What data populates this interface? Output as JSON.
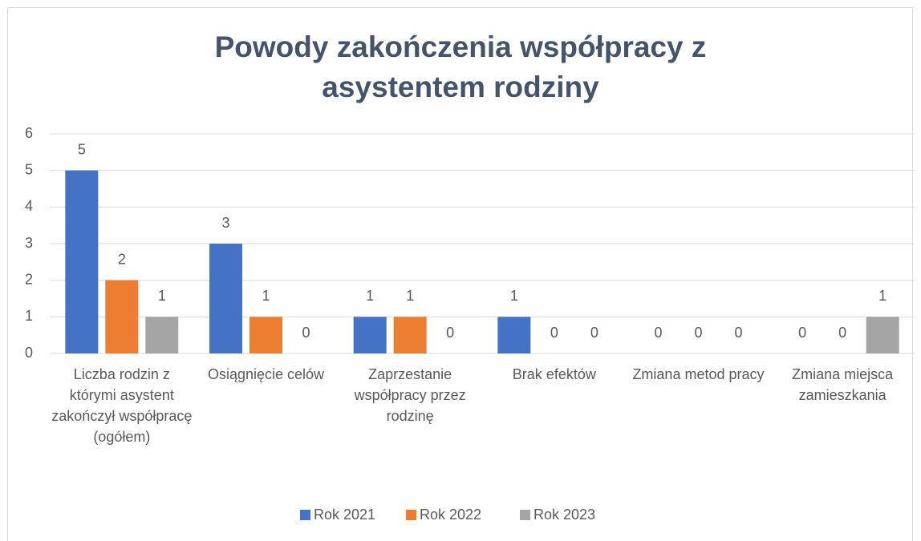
{
  "chart_data": {
    "type": "bar",
    "title": "Powody zakończenia współpracy z asystentem rodziny",
    "categories": [
      "Liczba rodzin z którymi asystent zakończył współpracę (ogółem)",
      "Osiągnięcie celów",
      "Zaprzestanie współpracy przez rodzinę",
      "Brak efektów",
      "Zmiana metod pracy",
      "Zmiana miejsca zamieszkania"
    ],
    "series": [
      {
        "name": "Rok 2021",
        "color": "#4472c4",
        "values": [
          5,
          3,
          1,
          1,
          0,
          0
        ]
      },
      {
        "name": "Rok 2022",
        "color": "#ed7d31",
        "values": [
          2,
          1,
          1,
          0,
          0,
          0
        ]
      },
      {
        "name": "Rok 2023",
        "color": "#a5a5a5",
        "values": [
          1,
          0,
          0,
          0,
          0,
          1
        ]
      }
    ],
    "ylim": [
      0,
      6
    ],
    "yticks": [
      0,
      1,
      2,
      3,
      4,
      5,
      6
    ],
    "grid": true,
    "legend": "bottom"
  }
}
